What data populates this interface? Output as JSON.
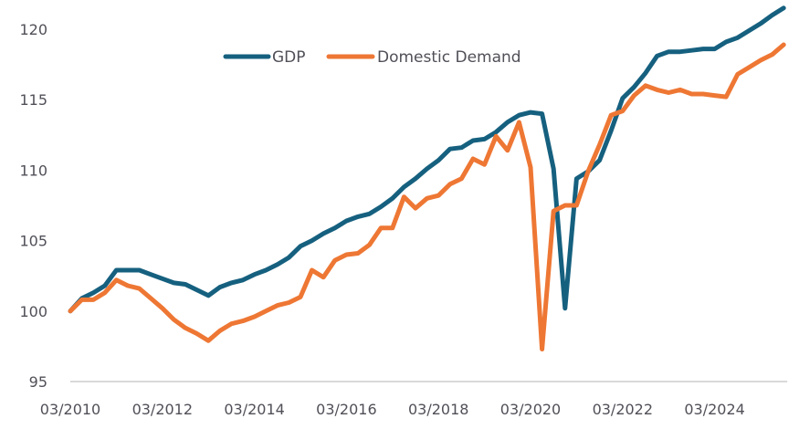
{
  "chart_data": {
    "type": "line",
    "title": "",
    "xlabel": "",
    "ylabel": "",
    "ylim": [
      95,
      121.7
    ],
    "yticks": [
      95,
      100,
      105,
      110,
      115,
      120
    ],
    "ytick_labels": [
      "95",
      "100",
      "105",
      "110",
      "115",
      "120"
    ],
    "xtick_labels": [
      "03/2010",
      "03/2012",
      "03/2014",
      "03/2016",
      "03/2018",
      "03/2020",
      "03/2022",
      "03/2024"
    ],
    "xtick_index": [
      0,
      8,
      16,
      24,
      32,
      40,
      48,
      56
    ],
    "grid": false,
    "baseline_at": 95,
    "legend_position": "top-center",
    "x_frequency": "quarterly",
    "x_start": "03/2010",
    "x_end": "09/2025",
    "series": [
      {
        "name": "GDP",
        "color": "#16607F",
        "values": [
          100.0,
          100.9,
          101.3,
          101.8,
          102.9,
          102.9,
          102.9,
          102.6,
          102.3,
          102.0,
          101.9,
          101.5,
          101.1,
          101.7,
          102.0,
          102.2,
          102.6,
          102.9,
          103.3,
          103.8,
          104.6,
          105.0,
          105.5,
          105.9,
          106.4,
          106.7,
          106.9,
          107.4,
          108.0,
          108.8,
          109.4,
          110.1,
          110.7,
          111.5,
          111.6,
          112.1,
          112.2,
          112.7,
          113.4,
          113.9,
          114.1,
          114.0,
          110.1,
          100.2,
          109.4,
          109.9,
          110.7,
          112.8,
          115.1,
          115.9,
          116.9,
          118.1,
          118.4,
          118.4,
          118.5,
          118.6,
          118.6,
          119.1,
          119.4,
          119.9,
          120.4,
          121.0,
          121.5
        ]
      },
      {
        "name": "Domestic Demand",
        "color": "#EE7734",
        "values": [
          100.0,
          100.8,
          100.8,
          101.3,
          102.2,
          101.8,
          101.6,
          100.9,
          100.2,
          99.4,
          98.8,
          98.4,
          97.9,
          98.6,
          99.1,
          99.3,
          99.6,
          100.0,
          100.4,
          100.6,
          101.0,
          102.9,
          102.4,
          103.6,
          104.0,
          104.1,
          104.7,
          105.9,
          105.9,
          108.1,
          107.3,
          108.0,
          108.2,
          109.0,
          109.4,
          110.8,
          110.4,
          112.4,
          111.4,
          113.4,
          110.2,
          97.3,
          107.1,
          107.5,
          107.5,
          109.9,
          111.8,
          113.9,
          114.2,
          115.3,
          116.0,
          115.7,
          115.5,
          115.7,
          115.4,
          115.4,
          115.3,
          115.2,
          116.8,
          117.3,
          117.8,
          118.2,
          118.9
        ]
      }
    ]
  }
}
